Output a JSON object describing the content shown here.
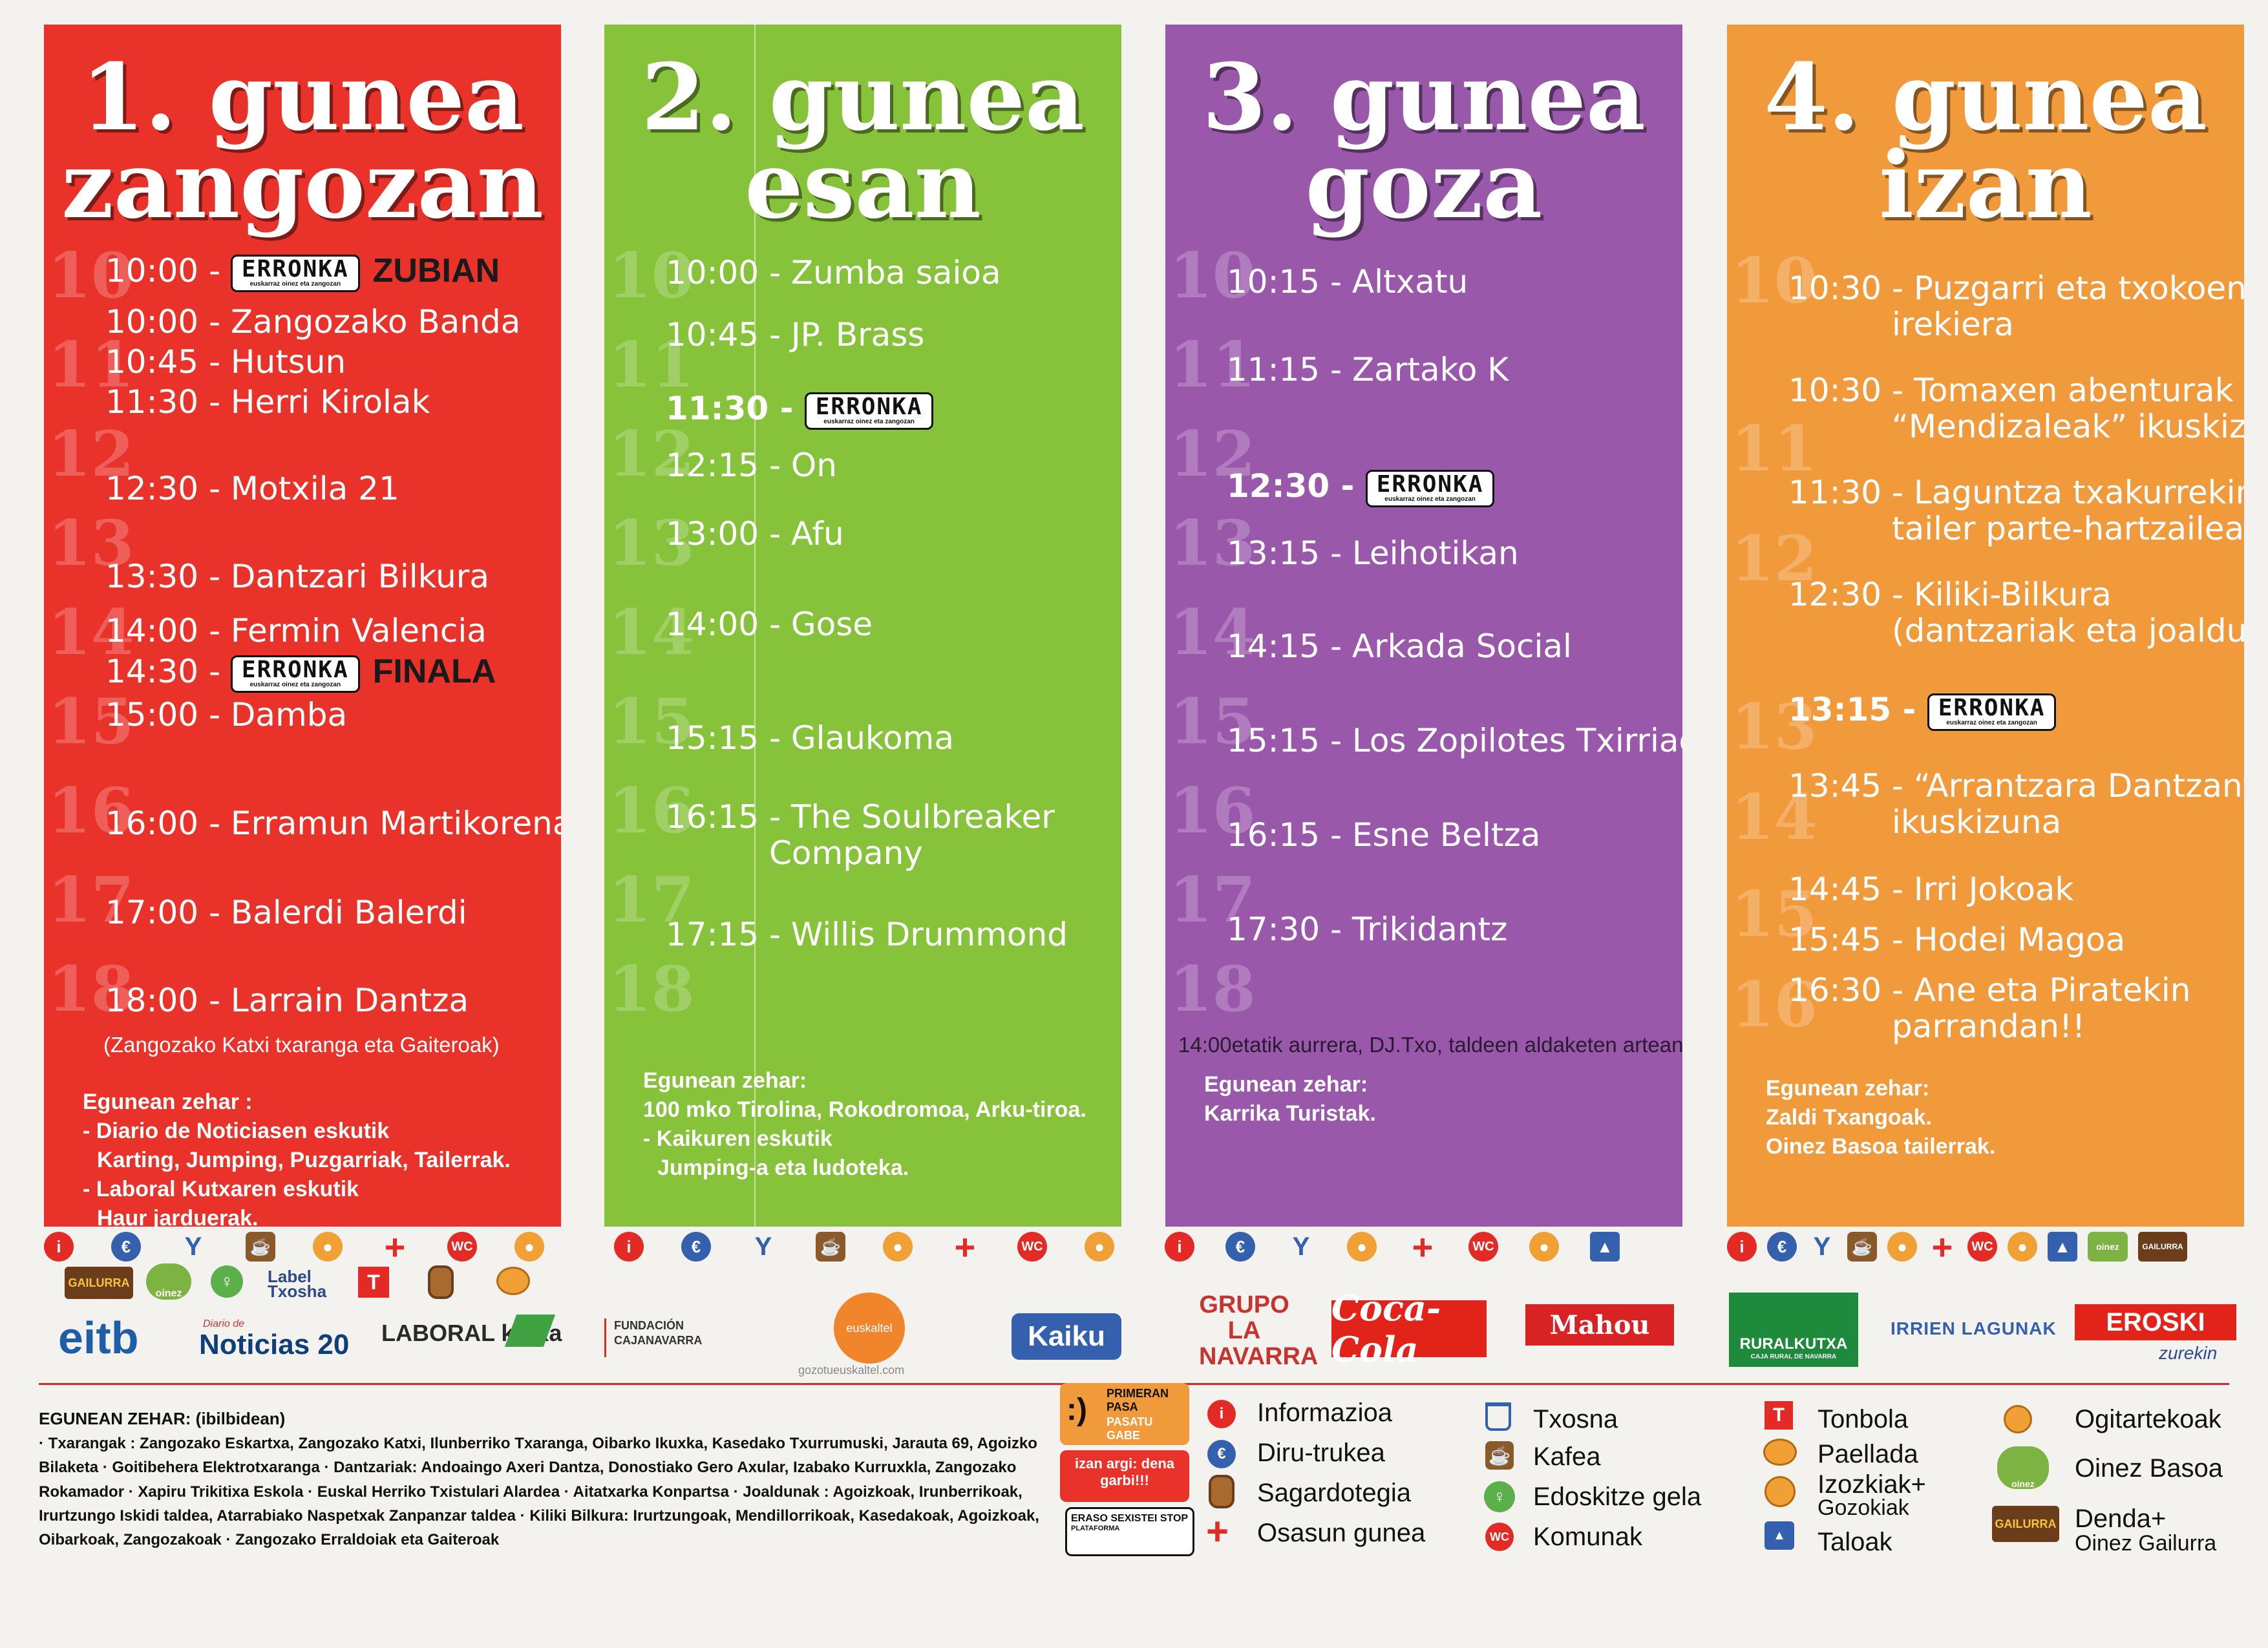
{
  "columns": [
    {
      "title1": "1. gunea",
      "title2": "zangozan",
      "color": "#e8322a",
      "hours": [
        "10",
        "11",
        "12",
        "13",
        "14",
        "15",
        "16",
        "17",
        "18"
      ],
      "events": [
        {
          "time": "10:00 - ",
          "logo": "ERRONKA",
          "extra": "ZUBIAN"
        },
        {
          "time": "10:00 - ",
          "text": "Zangozako Banda"
        },
        {
          "time": "10:45 - ",
          "text": "Hutsun"
        },
        {
          "time": "11:30 - ",
          "text": "Herri Kirolak"
        },
        {
          "time": "12:30 - ",
          "text": "Motxila 21"
        },
        {
          "time": "13:30 - ",
          "text": "Dantzari Bilkura"
        },
        {
          "time": "14:00 - ",
          "text": "Fermin Valencia"
        },
        {
          "time": "14:30 - ",
          "logo": "ERRONKA",
          "extra": "FINALA"
        },
        {
          "time": "15:00 - ",
          "text": "Damba"
        },
        {
          "time": "16:00 - ",
          "text": "Erramun Martikorena"
        },
        {
          "time": "17:00 - ",
          "text": "Balerdi Balerdi"
        },
        {
          "time": "18:00 - ",
          "text": "Larrain Dantza"
        }
      ],
      "note": "(Zangozako Katxi txaranga eta Gaiteroak)",
      "eguna": [
        "Egunean zehar :",
        "- Diario de Noticiasen eskutik",
        "  Karting, Jumping, Puzgarriak, Tailerrak.",
        "- Laboral Kutxaren eskutik",
        "  Haur jarduerak."
      ]
    },
    {
      "title1": "2. gunea",
      "title2": "esan",
      "color": "#86c23a",
      "hours": [
        "10",
        "11",
        "12",
        "13",
        "14",
        "15",
        "16",
        "17",
        "18"
      ],
      "events": [
        {
          "time": "10:00 - ",
          "text": "Zumba saioa"
        },
        {
          "time": "10:45 - ",
          "text": "JP. Brass"
        },
        {
          "time": "11:30 - ",
          "logo": "ERRONKA",
          "bold": true
        },
        {
          "time": "12:15 - ",
          "text": "On"
        },
        {
          "time": "13:00 - ",
          "text": "Afu"
        },
        {
          "time": "14:00 - ",
          "text": "Gose"
        },
        {
          "time": "15:15 - ",
          "text": "Glaukoma"
        },
        {
          "time": "16:15 - ",
          "text": "The Soulbreaker",
          "cont": "Company"
        },
        {
          "time": "17:15 - ",
          "text": "Willis Drummond"
        }
      ],
      "eguna": [
        "Egunean zehar:",
        "100 mko Tirolina, Rokodromoa, Arku-tiroa.",
        "- Kaikuren eskutik",
        "  Jumping-a eta ludoteka."
      ]
    },
    {
      "title1": "3. gunea",
      "title2": "goza",
      "color": "#9a58ab",
      "hours": [
        "10",
        "11",
        "12",
        "13",
        "14",
        "15",
        "16",
        "17",
        "18"
      ],
      "events": [
        {
          "time": "10:15 - ",
          "text": "Altxatu"
        },
        {
          "time": "11:15 - ",
          "text": "Zartako K"
        },
        {
          "time": "12:30 - ",
          "logo": "ERRONKA",
          "bold": true
        },
        {
          "time": "13:15 - ",
          "text": "Leihotikan"
        },
        {
          "time": "14:15 - ",
          "text": "Arkada Social"
        },
        {
          "time": "15:15 - ",
          "text": "Los Zopilotes Txirriaos"
        },
        {
          "time": "16:15 - ",
          "text": "Esne Beltza"
        },
        {
          "time": "17:30 - ",
          "text": "Trikidantz"
        }
      ],
      "note": "14:00etatik aurrera, DJ.Txo, taldeen aldaketen artean",
      "eguna": [
        "Egunean zehar:",
        "Karrika Turistak."
      ]
    },
    {
      "title1": "4. gunea",
      "title2": "izan",
      "color": "#f09a3c",
      "hours": [
        "10",
        "11",
        "12",
        "13",
        "14",
        "15",
        "16"
      ],
      "events": [
        {
          "time": "10:30 - ",
          "text": "Puzgarri eta txokoen",
          "cont": "irekiera"
        },
        {
          "time": "10:30 - ",
          "text": "Tomaxen abenturak -",
          "cont": "“Mendizaleak” ikuskizuna"
        },
        {
          "time": "11:30 - ",
          "text": "Laguntza txakurrekin",
          "cont": "tailer parte-hartzaileak"
        },
        {
          "time": "12:30 - ",
          "text": "Kiliki-Bilkura",
          "cont": "(dantzariak eta joaldunak)"
        },
        {
          "time": "13:15 - ",
          "logo": "ERRONKA",
          "bold": true
        },
        {
          "time": "13:45 - ",
          "text": "“Arrantzara Dantzan”",
          "cont": "ikuskizuna"
        },
        {
          "time": "14:45 - ",
          "text": "Irri Jokoak"
        },
        {
          "time": "15:45 - ",
          "text": "Hodei Magoa"
        },
        {
          "time": "16:30 - ",
          "text": "Ane eta Piratekin",
          "cont": "parrandan!!"
        }
      ],
      "eguna": [
        "Egunean zehar:",
        "Zaldi Txangoak.",
        "Oinez Basoa tailerrak."
      ]
    }
  ],
  "erronka_sub": "euskarraz oinez eta zangozan",
  "icons": {
    "info": "i",
    "euro": "€",
    "wc": "WC",
    "cross": "+",
    "drink": "Y"
  },
  "sponsors": [
    "eitb",
    "Noticias 20",
    "LABORAL kutxa",
    "FUNDACIÓN CAJANAVARRA",
    "euskaltel",
    "Kaiku",
    "GRUPO LA NAVARRA",
    "Coca-Cola",
    "Mahou",
    "RURALKUTXA",
    "IRRIEN LAGUNAK",
    "EROSKI"
  ],
  "sponsor_sub": {
    "euskaltel": "gozotueuskaltel.com",
    "eroski": "zurekin",
    "ruralkutxa": "CAJA RURAL DE NAVARRA",
    "laboral": "kutxa",
    "noticias": "Diario de",
    "eitb": "eitb"
  },
  "label_logo": "Label Txosha",
  "oinez_logo": "oinez",
  "gailurra_logo": "GAILURRA",
  "bottom": {
    "heading": "EGUNEAN ZEHAR: (ibilbidean)",
    "text": "· Txarangak : Zangozako Eskartxa, Zangozako Katxi, Ilunberriko Txaranga, Oibarko Ikuxka, Kasedako Txurrumuski, Jarauta 69, Agoizko Bilaketa · Goitibehera Elektrotxaranga · Dantzariak: Andoaingo Axeri Dantza, Donostiako Gero Axular, Izabako Kurruxkla, Zangozako Rokamador · Xapiru Trikitixa Eskola · Euskal Herriko Txistulari Alardea · Aitatxarka Konpartsa · Joaldunak : Agoizkoak, Irunberrikoak, Irurtzungo Iskidi taldea, Atarrabiako Naspetxak Zanpanzar taldea · Kiliki Bilkura: Irurtzungoak, Mendillorrikoak, Kasedakoak, Agoizkoak, Oibarkoak, Zangozakoak · Zangozako Erraldoiak eta Gaiteroak"
  },
  "campaign": {
    "line1": "PRIMERAN PASA",
    "line2": "PASATU GABE",
    "line3": "izan argi: dena garbi!!!",
    "line4": "ERASO SEXISTEI STOP",
    "line5": "PLATAFORMA"
  },
  "legend": [
    {
      "icon": "i",
      "label": "Informazioa"
    },
    {
      "icon": "€",
      "label": "Diru-trukea"
    },
    {
      "icon": "barrel",
      "label": "Sagardotegia"
    },
    {
      "icon": "+",
      "label": "Osasun gunea"
    },
    {
      "icon": "cup",
      "label": "Txosna"
    },
    {
      "icon": "coffee",
      "label": "Kafea"
    },
    {
      "icon": "baby",
      "label": "Edoskitze gela"
    },
    {
      "icon": "WC",
      "label": "Komunak"
    },
    {
      "icon": "T",
      "label": "Tonbola"
    },
    {
      "icon": "paella",
      "label": "Paellada"
    },
    {
      "icon": "ice",
      "label": "Izozkiak+",
      "label2": "Gozokiak"
    },
    {
      "icon": "toilet",
      "label": "Taloak"
    },
    {
      "icon": "bread",
      "label": "Ogitartekoak"
    },
    {
      "icon": "oinez",
      "label": "Oinez Basoa"
    },
    {
      "icon": "gailurra",
      "label": "Denda+",
      "label2": "Oinez Gailurra"
    }
  ]
}
